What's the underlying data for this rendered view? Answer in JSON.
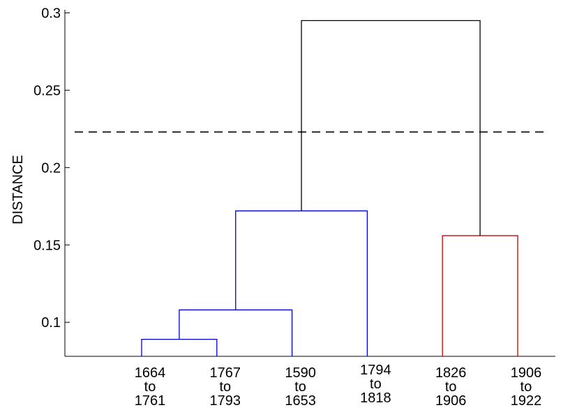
{
  "chart_data": {
    "type": "dendrogram",
    "ylabel": "DISTANCE",
    "xlabel": "",
    "title": "",
    "ylim": [
      0.078,
      0.302
    ],
    "yticks": [
      "0.1",
      "0.15",
      "0.2",
      "0.25",
      "0.3"
    ],
    "ytick_values": [
      0.1,
      0.15,
      0.2,
      0.25,
      0.3
    ],
    "grid": false,
    "leaves": [
      {
        "line1": "1664",
        "line2": "to",
        "line3": "1761"
      },
      {
        "line1": "1767",
        "line2": "to",
        "line3": "1793"
      },
      {
        "line1": "1590",
        "line2": "to",
        "line3": "1653"
      },
      {
        "line1": "1794",
        "line2": "to",
        "line3": "1818"
      },
      {
        "line1": "1826",
        "line2": "to",
        "line3": "1906"
      },
      {
        "line1": "1906",
        "line2": "to",
        "line3": "1922"
      }
    ],
    "merges": [
      {
        "left": 0,
        "right": 1,
        "height": 0.089,
        "color": "#0000cc"
      },
      {
        "left": "m0",
        "right": 2,
        "height": 0.108,
        "color": "#0000cc"
      },
      {
        "left": "m1",
        "right": 3,
        "height": 0.172,
        "color": "#0000cc"
      },
      {
        "left": 4,
        "right": 5,
        "height": 0.156,
        "color": "#cc0000"
      },
      {
        "left": "m2",
        "right": "m3",
        "height": 0.295,
        "color": "#000000"
      }
    ],
    "cutoff": {
      "value": 0.223,
      "style": "dashed",
      "color": "#000000"
    }
  }
}
